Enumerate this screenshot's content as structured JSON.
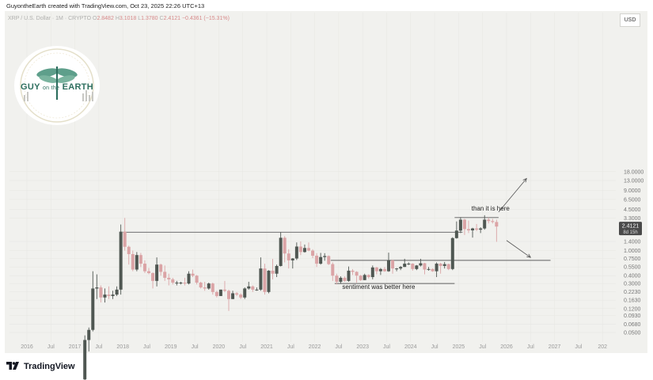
{
  "header": "GuyontheEarth created with TradingView.com, Oct 23, 2025 22:26 UTC+13",
  "ohlc": {
    "symbol": "XRP / U.S. Dollar · 1M · CRYPTO",
    "o_label": "O",
    "o": "2.8482",
    "h_label": "H",
    "h": "3.1018",
    "l_label": "L",
    "l": "1.3780",
    "c_label": "C",
    "c": "2.4121",
    "change": "−0.4361 (−15.31%)"
  },
  "currency": "USD",
  "logo_text": {
    "left": "GUY",
    "mid": "on the",
    "right": "EARTH"
  },
  "price_tag": {
    "price": "2.4121",
    "countdown": "8d 15h"
  },
  "footer_brand": "TradingView",
  "chart_data": {
    "type": "candlestick",
    "y_scale": "log",
    "ylim": [
      0.04,
      30
    ],
    "y_ticks": [
      {
        "v": 18,
        "label": "18.0000"
      },
      {
        "v": 13,
        "label": "13.0000"
      },
      {
        "v": 9,
        "label": "9.0000"
      },
      {
        "v": 6.5,
        "label": "6.5000"
      },
      {
        "v": 4.5,
        "label": "4.5000"
      },
      {
        "v": 3.3,
        "label": "3.3000"
      },
      {
        "v": 1.4,
        "label": "1.4000"
      },
      {
        "v": 1.0,
        "label": "1.0000"
      },
      {
        "v": 0.75,
        "label": "0.7500"
      },
      {
        "v": 0.55,
        "label": "0.5500"
      },
      {
        "v": 0.4,
        "label": "0.4000"
      },
      {
        "v": 0.3,
        "label": "0.3000"
      },
      {
        "v": 0.223,
        "label": "0.2230"
      },
      {
        "v": 0.163,
        "label": "0.1630"
      },
      {
        "v": 0.12,
        "label": "0.1200"
      },
      {
        "v": 0.093,
        "label": "0.0930"
      },
      {
        "v": 0.068,
        "label": "0.0680"
      },
      {
        "v": 0.05,
        "label": "0.0500"
      }
    ],
    "x_ticks": [
      "2016",
      "Jul",
      "2017",
      "Jul",
      "2018",
      "Jul",
      "2019",
      "Jul",
      "2020",
      "Jul",
      "2021",
      "Jul",
      "2022",
      "Jul",
      "2023",
      "Jul",
      "2024",
      "Jul",
      "2025",
      "Jul",
      "2026",
      "Jul",
      "2027",
      "Jul",
      "202"
    ],
    "x_start": "2016-01",
    "candles": [
      [
        "2017-03",
        0.009,
        0.045,
        0.005,
        0.038
      ],
      [
        "2017-04",
        0.038,
        0.06,
        0.025,
        0.055
      ],
      [
        "2017-05",
        0.055,
        0.47,
        0.052,
        0.25
      ],
      [
        "2017-06",
        0.25,
        0.42,
        0.17,
        0.26
      ],
      [
        "2017-07",
        0.26,
        0.28,
        0.15,
        0.18
      ],
      [
        "2017-08",
        0.18,
        0.25,
        0.15,
        0.2
      ],
      [
        "2017-09",
        0.2,
        0.27,
        0.17,
        0.19
      ],
      [
        "2017-10",
        0.19,
        0.23,
        0.17,
        0.2
      ],
      [
        "2017-11",
        0.2,
        0.27,
        0.19,
        0.24
      ],
      [
        "2017-12",
        0.24,
        2.6,
        0.2,
        2.0
      ],
      [
        "2018-01",
        2.0,
        3.3,
        1.0,
        1.15
      ],
      [
        "2018-02",
        1.15,
        1.2,
        0.6,
        0.88
      ],
      [
        "2018-03",
        0.88,
        1.0,
        0.47,
        0.5
      ],
      [
        "2018-04",
        0.5,
        0.95,
        0.47,
        0.85
      ],
      [
        "2018-05",
        0.85,
        0.92,
        0.55,
        0.62
      ],
      [
        "2018-06",
        0.62,
        0.7,
        0.44,
        0.47
      ],
      [
        "2018-07",
        0.47,
        0.53,
        0.42,
        0.44
      ],
      [
        "2018-08",
        0.44,
        0.45,
        0.25,
        0.33
      ],
      [
        "2018-09",
        0.33,
        0.78,
        0.27,
        0.6
      ],
      [
        "2018-10",
        0.6,
        0.62,
        0.4,
        0.46
      ],
      [
        "2018-11",
        0.46,
        0.58,
        0.33,
        0.37
      ],
      [
        "2018-12",
        0.37,
        0.43,
        0.28,
        0.35
      ],
      [
        "2019-01",
        0.35,
        0.37,
        0.29,
        0.31
      ],
      [
        "2019-02",
        0.31,
        0.33,
        0.28,
        0.31
      ],
      [
        "2019-03",
        0.31,
        0.32,
        0.29,
        0.31
      ],
      [
        "2019-04",
        0.31,
        0.37,
        0.28,
        0.3
      ],
      [
        "2019-05",
        0.3,
        0.47,
        0.29,
        0.43
      ],
      [
        "2019-06",
        0.43,
        0.5,
        0.38,
        0.4
      ],
      [
        "2019-07",
        0.4,
        0.41,
        0.29,
        0.31
      ],
      [
        "2019-08",
        0.31,
        0.32,
        0.25,
        0.26
      ],
      [
        "2019-09",
        0.26,
        0.32,
        0.23,
        0.25
      ],
      [
        "2019-10",
        0.25,
        0.31,
        0.24,
        0.3
      ],
      [
        "2019-11",
        0.3,
        0.31,
        0.2,
        0.22
      ],
      [
        "2019-12",
        0.22,
        0.23,
        0.18,
        0.19
      ],
      [
        "2020-01",
        0.19,
        0.24,
        0.19,
        0.24
      ],
      [
        "2020-02",
        0.24,
        0.33,
        0.22,
        0.23
      ],
      [
        "2020-03",
        0.23,
        0.24,
        0.11,
        0.17
      ],
      [
        "2020-04",
        0.17,
        0.23,
        0.17,
        0.21
      ],
      [
        "2020-05",
        0.21,
        0.22,
        0.19,
        0.2
      ],
      [
        "2020-06",
        0.2,
        0.21,
        0.17,
        0.18
      ],
      [
        "2020-07",
        0.18,
        0.26,
        0.17,
        0.25
      ],
      [
        "2020-08",
        0.25,
        0.32,
        0.24,
        0.27
      ],
      [
        "2020-09",
        0.27,
        0.28,
        0.22,
        0.24
      ],
      [
        "2020-10",
        0.24,
        0.26,
        0.23,
        0.24
      ],
      [
        "2020-11",
        0.24,
        0.78,
        0.23,
        0.52
      ],
      [
        "2020-12",
        0.52,
        0.62,
        0.2,
        0.22
      ],
      [
        "2021-01",
        0.22,
        0.49,
        0.21,
        0.48
      ],
      [
        "2021-02",
        0.48,
        0.74,
        0.35,
        0.43
      ],
      [
        "2021-03",
        0.43,
        0.6,
        0.38,
        0.57
      ],
      [
        "2021-04",
        0.57,
        1.96,
        0.56,
        1.6
      ],
      [
        "2021-05",
        1.6,
        1.7,
        0.65,
        0.9
      ],
      [
        "2021-06",
        0.9,
        1.05,
        0.52,
        0.7
      ],
      [
        "2021-07",
        0.7,
        0.76,
        0.52,
        0.75
      ],
      [
        "2021-08",
        0.75,
        1.35,
        0.71,
        1.16
      ],
      [
        "2021-09",
        1.16,
        1.4,
        0.85,
        0.95
      ],
      [
        "2021-10",
        0.95,
        1.25,
        0.93,
        1.1
      ],
      [
        "2021-11",
        1.1,
        1.35,
        0.98,
        1.0
      ],
      [
        "2021-12",
        1.0,
        1.05,
        0.76,
        0.83
      ],
      [
        "2022-01",
        0.83,
        0.91,
        0.55,
        0.62
      ],
      [
        "2022-02",
        0.62,
        0.92,
        0.6,
        0.79
      ],
      [
        "2022-03",
        0.79,
        0.91,
        0.69,
        0.82
      ],
      [
        "2022-04",
        0.82,
        0.84,
        0.59,
        0.61
      ],
      [
        "2022-05",
        0.61,
        0.65,
        0.33,
        0.4
      ],
      [
        "2022-06",
        0.4,
        0.43,
        0.29,
        0.32
      ],
      [
        "2022-07",
        0.32,
        0.39,
        0.3,
        0.37
      ],
      [
        "2022-08",
        0.37,
        0.39,
        0.32,
        0.33
      ],
      [
        "2022-09",
        0.33,
        0.56,
        0.32,
        0.48
      ],
      [
        "2022-10",
        0.48,
        0.51,
        0.41,
        0.46
      ],
      [
        "2022-11",
        0.46,
        0.47,
        0.31,
        0.4
      ],
      [
        "2022-12",
        0.4,
        0.41,
        0.33,
        0.34
      ],
      [
        "2023-01",
        0.34,
        0.43,
        0.34,
        0.41
      ],
      [
        "2023-02",
        0.41,
        0.42,
        0.36,
        0.38
      ],
      [
        "2023-03",
        0.38,
        0.58,
        0.35,
        0.54
      ],
      [
        "2023-04",
        0.54,
        0.55,
        0.42,
        0.47
      ],
      [
        "2023-05",
        0.47,
        0.53,
        0.41,
        0.51
      ],
      [
        "2023-06",
        0.51,
        0.55,
        0.46,
        0.47
      ],
      [
        "2023-07",
        0.47,
        0.93,
        0.46,
        0.7
      ],
      [
        "2023-08",
        0.7,
        0.72,
        0.43,
        0.52
      ],
      [
        "2023-09",
        0.52,
        0.53,
        0.47,
        0.52
      ],
      [
        "2023-10",
        0.52,
        0.57,
        0.49,
        0.55
      ],
      [
        "2023-11",
        0.55,
        0.74,
        0.55,
        0.62
      ],
      [
        "2023-12",
        0.62,
        0.65,
        0.59,
        0.62
      ],
      [
        "2024-01",
        0.62,
        0.63,
        0.48,
        0.51
      ],
      [
        "2024-02",
        0.51,
        0.59,
        0.49,
        0.58
      ],
      [
        "2024-03",
        0.58,
        0.74,
        0.56,
        0.63
      ],
      [
        "2024-04",
        0.63,
        0.64,
        0.42,
        0.5
      ],
      [
        "2024-05",
        0.5,
        0.55,
        0.48,
        0.51
      ],
      [
        "2024-06",
        0.51,
        0.52,
        0.46,
        0.47
      ],
      [
        "2024-07",
        0.47,
        0.65,
        0.38,
        0.62
      ],
      [
        "2024-08",
        0.62,
        0.64,
        0.43,
        0.57
      ],
      [
        "2024-09",
        0.57,
        0.66,
        0.52,
        0.61
      ],
      [
        "2024-10",
        0.61,
        0.62,
        0.49,
        0.51
      ],
      [
        "2024-11",
        0.51,
        1.63,
        0.49,
        1.58
      ],
      [
        "2024-12",
        1.58,
        2.91,
        1.55,
        2.08
      ],
      [
        "2025-01",
        2.08,
        3.4,
        1.9,
        3.1
      ],
      [
        "2025-02",
        3.1,
        3.2,
        1.77,
        2.2
      ],
      [
        "2025-03",
        2.2,
        3.0,
        1.9,
        2.1
      ],
      [
        "2025-04",
        2.1,
        2.3,
        1.61,
        2.25
      ],
      [
        "2025-05",
        2.25,
        2.65,
        2.05,
        2.15
      ],
      [
        "2025-06",
        2.15,
        2.35,
        1.9,
        2.25
      ],
      [
        "2025-07",
        2.25,
        3.65,
        2.15,
        3.1
      ],
      [
        "2025-08",
        3.1,
        3.35,
        2.7,
        2.95
      ],
      [
        "2025-09",
        2.95,
        3.2,
        2.7,
        2.85
      ],
      [
        "2025-10",
        2.8482,
        3.1018,
        1.378,
        2.4121
      ]
    ],
    "levels": [
      {
        "from": "2018-01",
        "to": "2025-02",
        "y": 1.96
      },
      {
        "from": "2022-05",
        "to": "2026-12",
        "y": 0.7
      },
      {
        "from": "2022-06",
        "to": "2024-12",
        "y": 0.3
      },
      {
        "from": "2024-12",
        "to": "2025-11",
        "y": 3.35
      }
    ],
    "annotations": [
      {
        "text": "than it is here",
        "x": "2025-09",
        "y": 4.3
      },
      {
        "text": "sentiment was better here",
        "x": "2023-05",
        "y": 0.245
      }
    ],
    "arrows": [
      {
        "from": [
          "2025-11",
          4.1
        ],
        "to": [
          "2026-06",
          14
        ]
      },
      {
        "from": [
          "2026-01",
          1.45
        ],
        "to": [
          "2026-07",
          0.78
        ]
      }
    ],
    "colors": {
      "up": "#4f5752",
      "down": "#dba4a6",
      "line": "#5e5e5e",
      "tag": "#4a4a4a"
    }
  }
}
